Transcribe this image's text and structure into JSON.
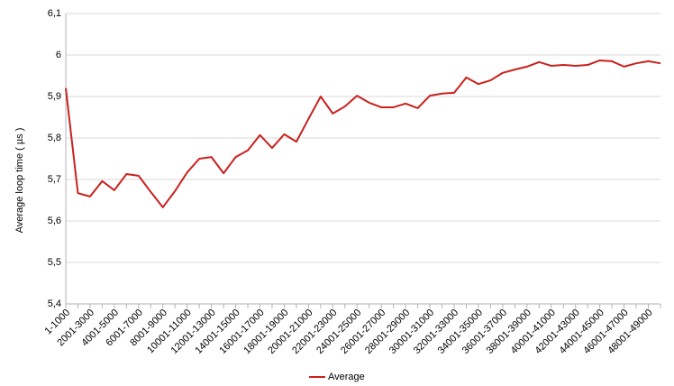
{
  "chart_data": {
    "type": "line",
    "y_label": "Average loop time ( µs )",
    "categories": [
      "1-1000",
      null,
      "2001-3000",
      null,
      "4001-5000",
      null,
      "6001-7000",
      null,
      "8001-9000",
      null,
      "10001-11000",
      null,
      "12001-13000",
      null,
      "14001-15000",
      null,
      "16001-17000",
      null,
      "18001-19000",
      null,
      "20001-21000",
      null,
      "22001-23000",
      null,
      "24001-25000",
      null,
      "26001-27000",
      null,
      "28001-29000",
      null,
      "30001-31000",
      null,
      "32001-33000",
      null,
      "34001-35000",
      null,
      "36001-37000",
      null,
      "38001-39000",
      null,
      "40001-41000",
      null,
      "42001-43000",
      null,
      "44001-45000",
      null,
      "46001-47000",
      null,
      "48001-49000",
      null
    ],
    "series": [
      {
        "name": "Average",
        "color": "#c9211e",
        "values": [
          5.92,
          5.667,
          5.659,
          5.696,
          5.674,
          5.713,
          5.709,
          5.67,
          5.633,
          5.672,
          5.717,
          5.75,
          5.754,
          5.715,
          5.754,
          5.77,
          5.807,
          5.776,
          5.809,
          5.791,
          5.846,
          5.9,
          5.859,
          5.876,
          5.902,
          5.885,
          5.874,
          5.874,
          5.883,
          5.872,
          5.902,
          5.907,
          5.909,
          5.946,
          5.93,
          5.939,
          5.957,
          5.965,
          5.972,
          5.983,
          5.974,
          5.976,
          5.974,
          5.976,
          5.987,
          5.985,
          5.972,
          5.98,
          5.985,
          5.98
        ]
      }
    ],
    "ylim": [
      5.4,
      6.1
    ],
    "yticks": [
      {
        "value": 5.4,
        "label": "5,4"
      },
      {
        "value": 5.5,
        "label": "5,5"
      },
      {
        "value": 5.6,
        "label": "5,6"
      },
      {
        "value": 5.7,
        "label": "5,7"
      },
      {
        "value": 5.8,
        "label": "5,8"
      },
      {
        "value": 5.9,
        "label": "5,9"
      },
      6,
      {
        "value": 6.1,
        "label": "6,1"
      }
    ],
    "grid": true,
    "legend": "bottom"
  }
}
